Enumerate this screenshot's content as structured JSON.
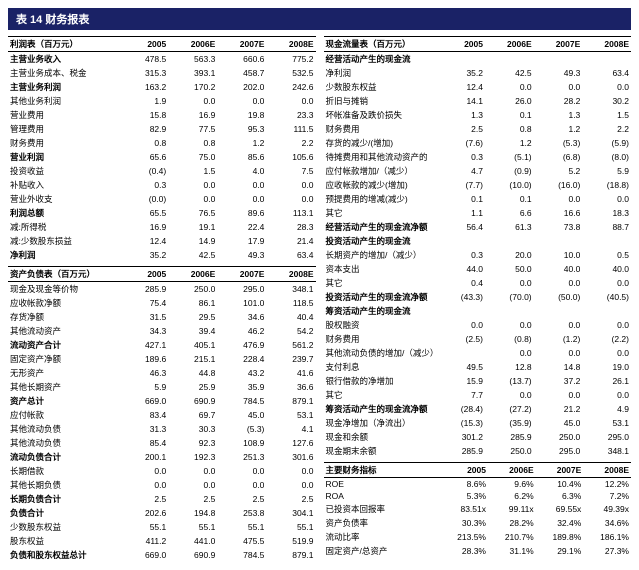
{
  "title": "表 14 财务报表",
  "years": [
    "2005",
    "2006E",
    "2007E",
    "2008E"
  ],
  "income_statement": {
    "header": "利润表（百万元）",
    "rows": [
      {
        "l": "主营业务收入",
        "v": [
          "478.5",
          "563.3",
          "660.6",
          "775.2"
        ],
        "b": 1
      },
      {
        "l": "主营业务成本、税金",
        "v": [
          "315.3",
          "393.1",
          "458.7",
          "532.5"
        ]
      },
      {
        "l": "主营业务利润",
        "v": [
          "163.2",
          "170.2",
          "202.0",
          "242.6"
        ],
        "b": 1
      },
      {
        "l": "其他业务利润",
        "v": [
          "1.9",
          "0.0",
          "0.0",
          "0.0"
        ]
      },
      {
        "l": "营业费用",
        "v": [
          "15.8",
          "16.9",
          "19.8",
          "23.3"
        ]
      },
      {
        "l": "管理费用",
        "v": [
          "82.9",
          "77.5",
          "95.3",
          "111.5"
        ]
      },
      {
        "l": "财务费用",
        "v": [
          "0.8",
          "0.8",
          "1.2",
          "2.2"
        ]
      },
      {
        "l": "营业利润",
        "v": [
          "65.6",
          "75.0",
          "85.6",
          "105.6"
        ],
        "b": 1
      },
      {
        "l": "投资收益",
        "v": [
          "(0.4)",
          "1.5",
          "4.0",
          "7.5"
        ]
      },
      {
        "l": "补贴收入",
        "v": [
          "0.3",
          "0.0",
          "0.0",
          "0.0"
        ]
      },
      {
        "l": "营业外收支",
        "v": [
          "(0.0)",
          "0.0",
          "0.0",
          "0.0"
        ]
      },
      {
        "l": "利润总额",
        "v": [
          "65.5",
          "76.5",
          "89.6",
          "113.1"
        ],
        "b": 1
      },
      {
        "l": "减:所得税",
        "v": [
          "16.9",
          "19.1",
          "22.4",
          "28.3"
        ]
      },
      {
        "l": "减:少数股东损益",
        "v": [
          "12.4",
          "14.9",
          "17.9",
          "21.4"
        ]
      },
      {
        "l": "净利润",
        "v": [
          "35.2",
          "42.5",
          "49.3",
          "63.4"
        ],
        "b": 1
      }
    ]
  },
  "balance_sheet": {
    "header": "资产负债表（百万元）",
    "rows": [
      {
        "l": "现金及现金等价物",
        "v": [
          "285.9",
          "250.0",
          "295.0",
          "348.1"
        ]
      },
      {
        "l": "应收帐款净额",
        "v": [
          "75.4",
          "86.1",
          "101.0",
          "118.5"
        ]
      },
      {
        "l": "存货净额",
        "v": [
          "31.5",
          "29.5",
          "34.6",
          "40.4"
        ]
      },
      {
        "l": "其他流动资产",
        "v": [
          "34.3",
          "39.4",
          "46.2",
          "54.2"
        ]
      },
      {
        "l": "流动资产合计",
        "v": [
          "427.1",
          "405.1",
          "476.9",
          "561.2"
        ],
        "b": 1
      },
      {
        "l": "固定资产净额",
        "v": [
          "189.6",
          "215.1",
          "228.4",
          "239.7"
        ]
      },
      {
        "l": "无形资产",
        "v": [
          "46.3",
          "44.8",
          "43.2",
          "41.6"
        ]
      },
      {
        "l": "其他长期资产",
        "v": [
          "5.9",
          "25.9",
          "35.9",
          "36.6"
        ]
      },
      {
        "l": "资产总计",
        "v": [
          "669.0",
          "690.9",
          "784.5",
          "879.1"
        ],
        "b": 1
      },
      {
        "l": "应付帐款",
        "v": [
          "83.4",
          "69.7",
          "45.0",
          "53.1"
        ]
      },
      {
        "l": "其他流动负债",
        "v": [
          "31.3",
          "30.3",
          "(5.3)",
          "4.1"
        ]
      },
      {
        "l": "其他流动负债",
        "v": [
          "85.4",
          "92.3",
          "108.9",
          "127.6"
        ]
      },
      {
        "l": "流动负债合计",
        "v": [
          "200.1",
          "192.3",
          "251.3",
          "301.6"
        ],
        "b": 1
      },
      {
        "l": "长期借款",
        "v": [
          "0.0",
          "0.0",
          "0.0",
          "0.0"
        ]
      },
      {
        "l": "其他长期负债",
        "v": [
          "0.0",
          "0.0",
          "0.0",
          "0.0"
        ]
      },
      {
        "l": "长期负债合计",
        "v": [
          "2.5",
          "2.5",
          "2.5",
          "2.5"
        ],
        "b": 1
      },
      {
        "l": "负债合计",
        "v": [
          "202.6",
          "194.8",
          "253.8",
          "304.1"
        ],
        "b": 1
      },
      {
        "l": "少数股东权益",
        "v": [
          "55.1",
          "55.1",
          "55.1",
          "55.1"
        ]
      },
      {
        "l": "股东权益",
        "v": [
          "411.2",
          "441.0",
          "475.5",
          "519.9"
        ]
      },
      {
        "l": "负债和股东权益总计",
        "v": [
          "669.0",
          "690.9",
          "784.5",
          "879.1"
        ],
        "b": 1
      }
    ]
  },
  "cashflow": {
    "header": "现金流量表（百万元）",
    "sections": [
      {
        "sub": "经营活动产生的现金流",
        "rows": [
          {
            "l": "净利润",
            "v": [
              "35.2",
              "42.5",
              "49.3",
              "63.4"
            ]
          },
          {
            "l": "少数股东权益",
            "v": [
              "12.4",
              "0.0",
              "0.0",
              "0.0"
            ]
          },
          {
            "l": "折旧与摊销",
            "v": [
              "14.1",
              "26.0",
              "28.2",
              "30.2"
            ]
          },
          {
            "l": "坏帐准备及跌价损失",
            "v": [
              "1.3",
              "0.1",
              "1.3",
              "1.5"
            ]
          },
          {
            "l": "财务费用",
            "v": [
              "2.5",
              "0.8",
              "1.2",
              "2.2"
            ]
          },
          {
            "l": "存货的减少/(增加)",
            "v": [
              "(7.6)",
              "1.2",
              "(5.3)",
              "(5.9)"
            ]
          },
          {
            "l": "待摊费用和其他流动资产的",
            "v": [
              "0.3",
              "(5.1)",
              "(6.8)",
              "(8.0)"
            ]
          },
          {
            "l": "应付帐款增加/（减少）",
            "v": [
              "4.7",
              "(0.9)",
              "5.2",
              "5.9"
            ]
          },
          {
            "l": "应收帐款的减少(增加)",
            "v": [
              "(7.7)",
              "(10.0)",
              "(16.0)",
              "(18.8)"
            ]
          },
          {
            "l": "预提费用的增减(减少)",
            "v": [
              "0.1",
              "0.1",
              "0.0",
              "0.0"
            ]
          },
          {
            "l": "其它",
            "v": [
              "1.1",
              "6.6",
              "16.6",
              "18.3"
            ]
          },
          {
            "l": "经营活动产生的现金流净额",
            "v": [
              "56.4",
              "61.3",
              "73.8",
              "88.7"
            ],
            "b": 1
          }
        ]
      },
      {
        "sub": "投资活动产生的现金流",
        "rows": [
          {
            "l": "长期资产的增加/（减少）",
            "v": [
              "0.3",
              "20.0",
              "10.0",
              "0.5"
            ]
          },
          {
            "l": "资本支出",
            "v": [
              "44.0",
              "50.0",
              "40.0",
              "40.0"
            ]
          },
          {
            "l": "其它",
            "v": [
              "0.4",
              "0.0",
              "0.0",
              "0.0"
            ]
          },
          {
            "l": "投资活动产生的现金流净额",
            "v": [
              "(43.3)",
              "(70.0)",
              "(50.0)",
              "(40.5)"
            ],
            "b": 1
          }
        ]
      },
      {
        "sub": "筹资活动产生的现金流",
        "rows": [
          {
            "l": "股权融资",
            "v": [
              "0.0",
              "0.0",
              "0.0",
              "0.0"
            ]
          },
          {
            "l": "财务费用",
            "v": [
              "(2.5)",
              "(0.8)",
              "(1.2)",
              "(2.2)"
            ]
          },
          {
            "l": "其他流动负债的增加/（减少）",
            "v": [
              "",
              "0.0",
              "0.0",
              "0.0"
            ]
          },
          {
            "l": "支付利息",
            "v": [
              "49.5",
              "12.8",
              "14.8",
              "19.0"
            ]
          },
          {
            "l": "银行借款的净增加",
            "v": [
              "15.9",
              "(13.7)",
              "37.2",
              "26.1"
            ]
          },
          {
            "l": "其它",
            "v": [
              "7.7",
              "0.0",
              "0.0",
              "0.0"
            ]
          },
          {
            "l": "筹资活动产生的现金流净额",
            "v": [
              "(28.4)",
              "(27.2)",
              "21.2",
              "4.9"
            ],
            "b": 1
          }
        ]
      },
      {
        "sub": "",
        "rows": [
          {
            "l": "现金净增加（净流出）",
            "v": [
              "(15.3)",
              "(35.9)",
              "45.0",
              "53.1"
            ]
          },
          {
            "l": "现金和余额",
            "v": [
              "301.2",
              "285.9",
              "250.0",
              "295.0"
            ]
          },
          {
            "l": "现金期末余额",
            "v": [
              "285.9",
              "250.0",
              "295.0",
              "348.1"
            ]
          }
        ]
      }
    ]
  },
  "metrics": {
    "header": "主要财务指标",
    "rows": [
      {
        "l": "ROE",
        "v": [
          "8.6%",
          "9.6%",
          "10.4%",
          "12.2%"
        ]
      },
      {
        "l": "ROA",
        "v": [
          "5.3%",
          "6.2%",
          "6.3%",
          "7.2%"
        ]
      },
      {
        "l": "已投资本回报率",
        "v": [
          "83.51x",
          "99.11x",
          "69.55x",
          "49.39x"
        ]
      },
      {
        "l": "资产负债率",
        "v": [
          "30.3%",
          "28.2%",
          "32.4%",
          "34.6%"
        ]
      },
      {
        "l": "流动比率",
        "v": [
          "213.5%",
          "210.7%",
          "189.8%",
          "186.1%"
        ]
      },
      {
        "l": "固定资产/总资产",
        "v": [
          "28.3%",
          "31.1%",
          "29.1%",
          "27.3%"
        ]
      }
    ]
  },
  "colors": {
    "header_bg": "#1a2266",
    "header_fg": "#ffffff",
    "border": "#000000"
  }
}
